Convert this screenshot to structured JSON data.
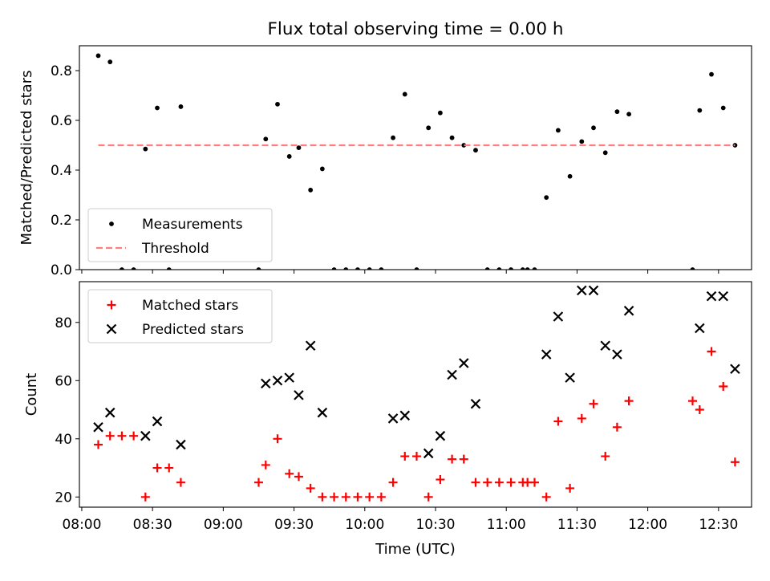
{
  "title": "Flux total observing time = 0.00 h",
  "xlabel": "Time (UTC)",
  "x_tick_labels": [
    "08:00",
    "08:30",
    "09:00",
    "09:30",
    "10:00",
    "10:30",
    "11:00",
    "11:30",
    "12:00",
    "12:30"
  ],
  "chart_data": [
    {
      "type": "scatter",
      "title": "Flux total observing time = 0.00 h",
      "xlabel": "Time (UTC)",
      "ylabel": "Matched/Predicted stars",
      "xlim": [
        "07:59",
        "12:44"
      ],
      "ylim": [
        0,
        0.9
      ],
      "y_ticks": [
        "0.0",
        "0.2",
        "0.4",
        "0.6",
        "0.8"
      ],
      "legend_position": "lower-left",
      "grid": false,
      "series": [
        {
          "name": "Measurements",
          "marker": "dot",
          "color": "#000000",
          "points": [
            [
              "08:07",
              0.86
            ],
            [
              "08:12",
              0.835
            ],
            [
              "08:17",
              0.0
            ],
            [
              "08:22",
              0.0
            ],
            [
              "08:27",
              0.485
            ],
            [
              "08:32",
              0.65
            ],
            [
              "08:37",
              0.0
            ],
            [
              "08:42",
              0.655
            ],
            [
              "09:15",
              0.0
            ],
            [
              "09:18",
              0.525
            ],
            [
              "09:23",
              0.665
            ],
            [
              "09:28",
              0.455
            ],
            [
              "09:32",
              0.49
            ],
            [
              "09:37",
              0.32
            ],
            [
              "09:42",
              0.405
            ],
            [
              "09:47",
              0.0
            ],
            [
              "09:52",
              0.0
            ],
            [
              "09:57",
              0.0
            ],
            [
              "10:02",
              0.0
            ],
            [
              "10:07",
              0.0
            ],
            [
              "10:12",
              0.53
            ],
            [
              "10:17",
              0.705
            ],
            [
              "10:22",
              0.0
            ],
            [
              "10:27",
              0.57
            ],
            [
              "10:32",
              0.63
            ],
            [
              "10:37",
              0.53
            ],
            [
              "10:42",
              0.5
            ],
            [
              "10:47",
              0.48
            ],
            [
              "10:52",
              0.0
            ],
            [
              "10:57",
              0.0
            ],
            [
              "11:02",
              0.0
            ],
            [
              "11:07",
              0.0
            ],
            [
              "11:09",
              0.0
            ],
            [
              "11:12",
              0.0
            ],
            [
              "11:17",
              0.29
            ],
            [
              "11:22",
              0.56
            ],
            [
              "11:27",
              0.375
            ],
            [
              "11:32",
              0.515
            ],
            [
              "11:37",
              0.57
            ],
            [
              "11:42",
              0.47
            ],
            [
              "11:47",
              0.635
            ],
            [
              "11:52",
              0.625
            ],
            [
              "12:19",
              0.0
            ],
            [
              "12:22",
              0.64
            ],
            [
              "12:27",
              0.785
            ],
            [
              "12:32",
              0.65
            ],
            [
              "12:37",
              0.5
            ]
          ]
        },
        {
          "name": "Threshold",
          "line_style": "dashed",
          "color": "#ff7f7f",
          "points": [
            [
              "08:07",
              0.5
            ],
            [
              "12:37",
              0.5
            ]
          ]
        }
      ]
    },
    {
      "type": "scatter",
      "xlabel": "Time (UTC)",
      "ylabel": "Count",
      "xlim": [
        "07:59",
        "12:44"
      ],
      "ylim": [
        16.5,
        94
      ],
      "y_ticks": [
        "20",
        "40",
        "60",
        "80"
      ],
      "legend_position": "upper-left",
      "grid": false,
      "series": [
        {
          "name": "Matched stars",
          "marker": "plus",
          "color": "#ff0000",
          "points": [
            [
              "08:07",
              38
            ],
            [
              "08:12",
              41
            ],
            [
              "08:17",
              41
            ],
            [
              "08:22",
              41
            ],
            [
              "08:27",
              20
            ],
            [
              "08:32",
              30
            ],
            [
              "08:37",
              30
            ],
            [
              "08:42",
              25
            ],
            [
              "09:15",
              25
            ],
            [
              "09:18",
              31
            ],
            [
              "09:23",
              40
            ],
            [
              "09:28",
              28
            ],
            [
              "09:32",
              27
            ],
            [
              "09:37",
              23
            ],
            [
              "09:42",
              20
            ],
            [
              "09:47",
              20
            ],
            [
              "09:52",
              20
            ],
            [
              "09:57",
              20
            ],
            [
              "10:02",
              20
            ],
            [
              "10:07",
              20
            ],
            [
              "10:12",
              25
            ],
            [
              "10:17",
              34
            ],
            [
              "10:22",
              34
            ],
            [
              "10:27",
              20
            ],
            [
              "10:32",
              26
            ],
            [
              "10:37",
              33
            ],
            [
              "10:42",
              33
            ],
            [
              "10:47",
              25
            ],
            [
              "10:52",
              25
            ],
            [
              "10:57",
              25
            ],
            [
              "11:02",
              25
            ],
            [
              "11:07",
              25
            ],
            [
              "11:09",
              25
            ],
            [
              "11:12",
              25
            ],
            [
              "11:17",
              20
            ],
            [
              "11:22",
              46
            ],
            [
              "11:27",
              23
            ],
            [
              "11:32",
              47
            ],
            [
              "11:37",
              52
            ],
            [
              "11:42",
              34
            ],
            [
              "11:47",
              44
            ],
            [
              "11:52",
              53
            ],
            [
              "12:19",
              53
            ],
            [
              "12:22",
              50
            ],
            [
              "12:27",
              70
            ],
            [
              "12:32",
              58
            ],
            [
              "12:37",
              32
            ]
          ]
        },
        {
          "name": "Predicted stars",
          "marker": "x",
          "color": "#000000",
          "points": [
            [
              "08:07",
              44
            ],
            [
              "08:12",
              49
            ],
            [
              "08:27",
              41
            ],
            [
              "08:32",
              46
            ],
            [
              "08:42",
              38
            ],
            [
              "09:18",
              59
            ],
            [
              "09:23",
              60
            ],
            [
              "09:28",
              61
            ],
            [
              "09:32",
              55
            ],
            [
              "09:37",
              72
            ],
            [
              "09:42",
              49
            ],
            [
              "10:12",
              47
            ],
            [
              "10:17",
              48
            ],
            [
              "10:27",
              35
            ],
            [
              "10:32",
              41
            ],
            [
              "10:37",
              62
            ],
            [
              "10:42",
              66
            ],
            [
              "10:47",
              52
            ],
            [
              "11:17",
              69
            ],
            [
              "11:22",
              82
            ],
            [
              "11:27",
              61
            ],
            [
              "11:32",
              91
            ],
            [
              "11:37",
              91
            ],
            [
              "11:42",
              72
            ],
            [
              "11:47",
              69
            ],
            [
              "11:52",
              84
            ],
            [
              "12:22",
              78
            ],
            [
              "12:27",
              89
            ],
            [
              "12:32",
              89
            ],
            [
              "12:37",
              64
            ]
          ]
        }
      ]
    }
  ]
}
